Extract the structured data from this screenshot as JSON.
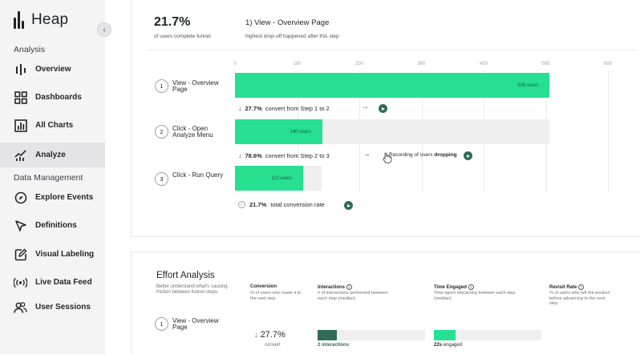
{
  "app": {
    "logo_text": "Heap"
  },
  "sidebar": {
    "section_analysis": "Analysis",
    "section_data": "Data Management",
    "items": [
      {
        "label": "Overview",
        "icon": "heap-bars-icon"
      },
      {
        "label": "Dashboards",
        "icon": "grid-icon"
      },
      {
        "label": "All Charts",
        "icon": "chart-icon"
      },
      {
        "label": "Analyze",
        "icon": "analyze-icon",
        "active": true
      },
      {
        "label": "Explore Events",
        "icon": "compass-icon"
      },
      {
        "label": "Definitions",
        "icon": "pointer-icon"
      },
      {
        "label": "Visual Labeling",
        "icon": "edit-icon"
      },
      {
        "label": "Live Data Feed",
        "icon": "broadcast-icon"
      },
      {
        "label": "User Sessions",
        "icon": "users-icon"
      }
    ]
  },
  "funnel": {
    "summary_value": "21.7%",
    "summary_label": "of users complete funnel",
    "dropoff_title": "1) View - Overview Page",
    "dropoff_sub": "highest drop-off happened after this step",
    "axis_ticks": [
      "0",
      "100",
      "200",
      "300",
      "400",
      "500",
      "600"
    ],
    "steps": [
      {
        "num": "1",
        "label": "View - Overview Page",
        "users": 506,
        "bar_text": "506 users"
      },
      {
        "num": "2",
        "label": "Click - Open Analyze Menu",
        "users": 140,
        "bar_text": "140 users"
      },
      {
        "num": "3",
        "label": "Click - Run Query",
        "users": 110,
        "bar_text": "110 users"
      }
    ],
    "conversions": [
      {
        "pct": "27.7%",
        "text": "convert from Step 1 to 2"
      },
      {
        "pct": "78.6%",
        "text": "convert from Step 2 to 3",
        "recording_pre": "Recording of users",
        "recording_bold": "dropping"
      }
    ],
    "total_pct": "21.7%",
    "total_text": "total conversion rate"
  },
  "effort": {
    "title": "Effort Analysis",
    "subtitle": "Better understand what's causing friction between funnel steps.",
    "columns": [
      {
        "head": "Conversion",
        "desc": "% of users who made it to the next step",
        "info": false
      },
      {
        "head": "Interactions",
        "desc": "# of interactions performed between each step (median)",
        "info": true
      },
      {
        "head": "Time Engaged",
        "desc": "Time spent interacting between each step (median)",
        "info": true
      },
      {
        "head": "Revisit Rate",
        "desc": "% of users who left the product before advancing to the next step",
        "info": true
      }
    ],
    "row": {
      "num": "1",
      "label": "View - Overview Page",
      "conversion": "27.7%",
      "conversion_sub": "convert",
      "interactions_value": "2 interactions",
      "interactions_fraction": 0.18,
      "time_value": "22s",
      "time_sub": "engaged",
      "time_fraction": 0.2
    }
  },
  "colors": {
    "bar": "#26df90",
    "accent": "#2f6b55",
    "bar_bg": "#efefef"
  }
}
